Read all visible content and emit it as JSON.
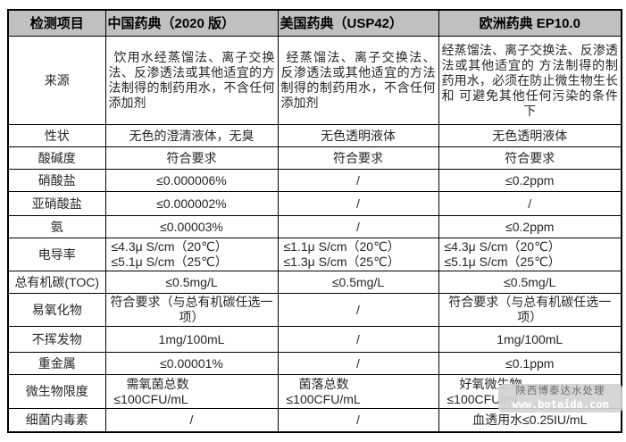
{
  "header": {
    "item": "检测项目",
    "cn": "中国药典（2020 版）",
    "us": "美国药典（USP42）",
    "eu": "欧洲药典 EP10.0"
  },
  "rows": [
    {
      "label": "来源",
      "cn": "饮用水经蒸馏法、离子交换法、反渗透法或其他适宜的方法制得的制药用水，不含任何添加剂",
      "us": "经蒸馏法、离子交换法、反渗透法或其他适宜的方法制得的制药用水，不含任何添加剂",
      "eu": "经蒸馏法、离子交换法、反渗透法或其他适宜的 方法制得的制药用水，必须在防止微生物生长和 可避免其他任何污染的条件下"
    },
    {
      "label": "性状",
      "cn": "无色的澄清液体，无臭",
      "us": "无色透明液体",
      "eu": "无色透明液体"
    },
    {
      "label": "酸碱度",
      "cn": "符合要求",
      "us": "符合要求",
      "eu": "符合要求"
    },
    {
      "label": "硝酸盐",
      "cn": "≤0.000006%",
      "us": "/",
      "eu": "≤0.2ppm"
    },
    {
      "label": "亚硝酸盐",
      "cn": "≤0.000002%",
      "us": "/",
      "eu": "/"
    },
    {
      "label": "氨",
      "cn": "≤0.00003%",
      "us": "/",
      "eu": "≤0.2ppm"
    },
    {
      "label": "电导率",
      "cn": "≤4.3μ S/cm（20℃）\n≤5.1μ S/cm（25℃）",
      "us": "≤1.1μ S/cm（20℃）\n≤1.3μ S/cm（25℃）",
      "eu": "≤4.3μ S/cm（20℃）\n≤5.1μ S/cm（25℃）"
    },
    {
      "label": "总有机碳(TOC)",
      "cn": "≤0.5mg/L",
      "us": "≤0.5mg/L",
      "eu": "≤0.5mg/L"
    },
    {
      "label": "易氧化物",
      "cn": "符合要求（与总有机碳任选一项）",
      "us": "/",
      "eu": "符合要求（与总有机碳任选一项）"
    },
    {
      "label": "不挥发物",
      "cn": "1mg/100mL",
      "us": "/",
      "eu": "1mg/100mL"
    },
    {
      "label": "重金属",
      "cn": "≤0.00001%",
      "us": "/",
      "eu": "≤0.1ppm"
    },
    {
      "label": "微生物限度",
      "cn": "需氧菌总数\n≤100CFU/mL",
      "us": "菌落总数\n≤100CFU/mL",
      "eu": "好氧微生物\n≤100CFU/mL"
    },
    {
      "label": "细菌内毒素",
      "cn": "/",
      "us": "/",
      "eu": "血透用水≤0.25IU/mL"
    }
  ],
  "watermark": {
    "line1": "陕西博泰达水处理",
    "line2": "www.botaida.com"
  },
  "colors": {
    "header_bg": "#c0c0c0",
    "border": "#000000",
    "text": "#262626",
    "watermark_bg": "#d2d2d2",
    "watermark_url": "#ffffff"
  }
}
